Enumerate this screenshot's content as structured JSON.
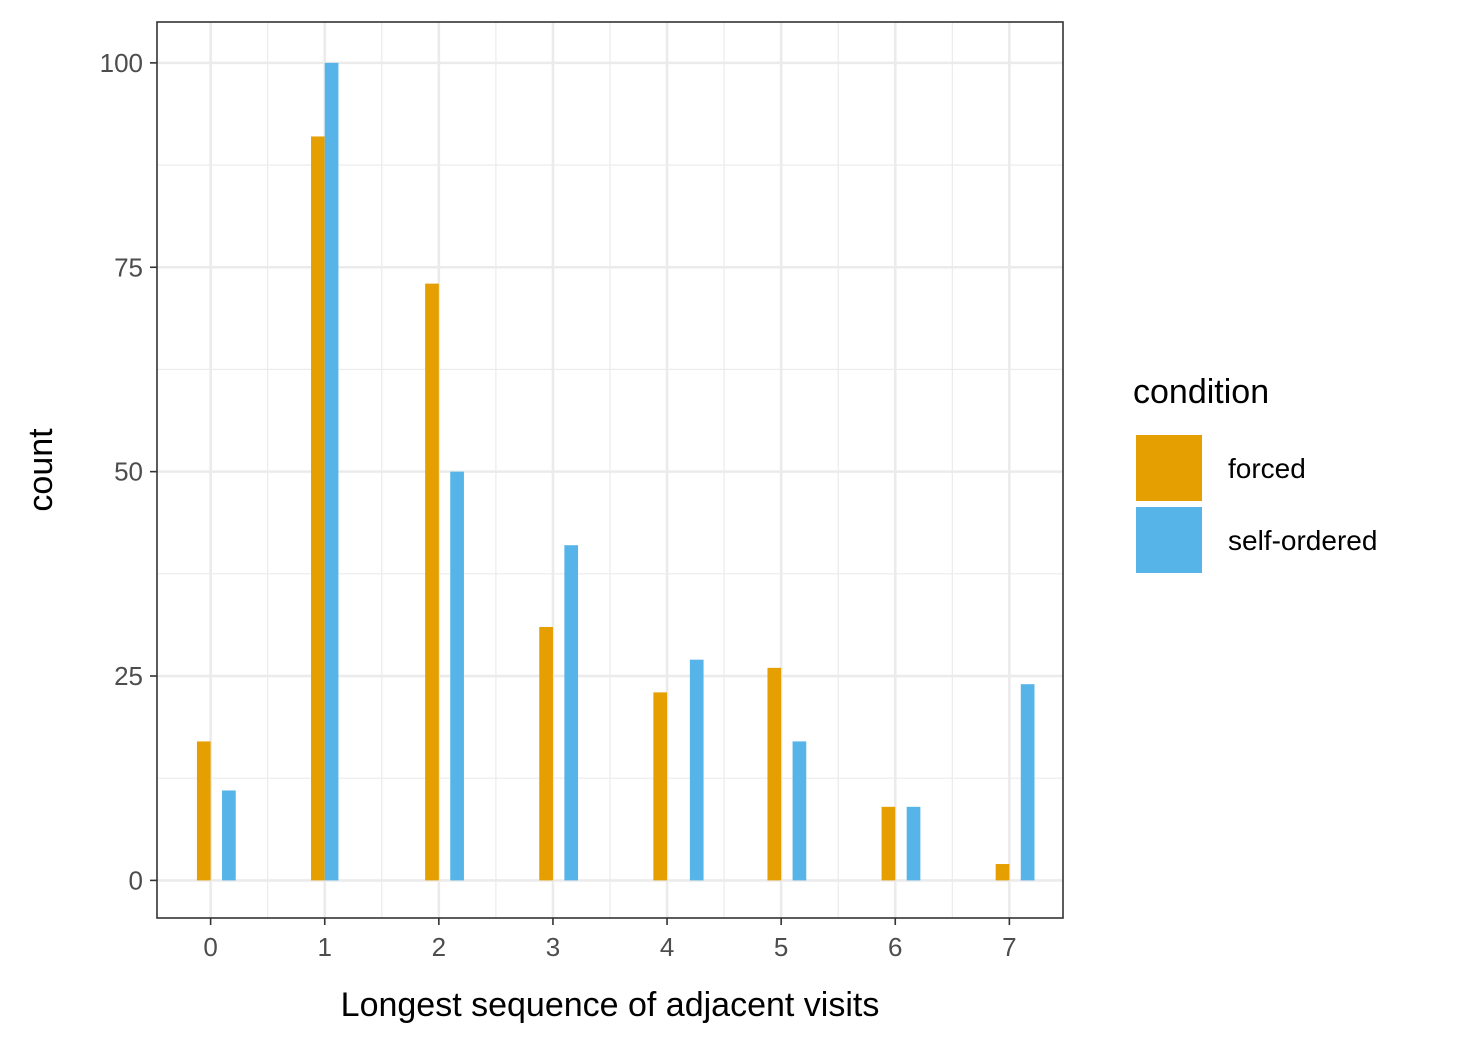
{
  "chart_data": {
    "type": "bar",
    "title": "",
    "xlabel": "Longest sequence of adjacent visits",
    "ylabel": "count",
    "categories": [
      "0",
      "1",
      "2",
      "3",
      "4",
      "5",
      "6",
      "7"
    ],
    "x": [
      0,
      1,
      2,
      3,
      4,
      5,
      6,
      7
    ],
    "series": [
      {
        "name": "forced",
        "color": "#E69F00",
        "x": [
          0,
          1,
          2,
          3,
          4,
          5,
          6,
          7
        ],
        "values": [
          17,
          91,
          73,
          31,
          23,
          26,
          9,
          2
        ]
      },
      {
        "name": "self-ordered",
        "color": "#56B4E9",
        "x": [
          0.1,
          1.0,
          2.1,
          3.1,
          4.2,
          5.1,
          6.1,
          7.1
        ],
        "values": [
          11,
          100,
          50,
          41,
          27,
          17,
          9,
          24
        ]
      }
    ],
    "yticks": [
      0,
      25,
      50,
      75,
      100
    ],
    "ytick_labels": [
      "0",
      "25",
      "50",
      "75",
      "100"
    ],
    "xticks": [
      0,
      1,
      2,
      3,
      4,
      5,
      6,
      7
    ],
    "xtick_labels": [
      "0",
      "1",
      "2",
      "3",
      "4",
      "5",
      "6",
      "7"
    ],
    "xlim": [
      -0.47,
      7.47
    ],
    "ylim": [
      -4.6,
      105
    ],
    "grid": true,
    "legend": {
      "title": "condition",
      "position": "right"
    }
  }
}
